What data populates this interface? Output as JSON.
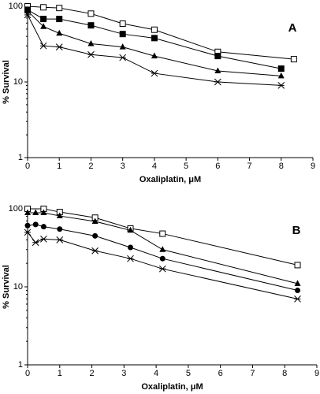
{
  "chart_data": [
    {
      "type": "line",
      "panel_label": "A",
      "x_label": "Oxaliplatin, μM",
      "y_label": "% Survival",
      "log_y": true,
      "xlim": [
        0,
        9
      ],
      "xticks": [
        0,
        1,
        2,
        3,
        4,
        5,
        6,
        7,
        8,
        9
      ],
      "ylim": [
        1,
        100
      ],
      "yticks": [
        1,
        10,
        100
      ],
      "series": [
        {
          "marker": "open-square",
          "color": "#000000",
          "x": [
            0,
            0.5,
            1,
            2,
            3,
            4,
            6,
            8.4
          ],
          "values": [
            100,
            97,
            95,
            80,
            59,
            49,
            25,
            20
          ]
        },
        {
          "marker": "filled-square",
          "color": "#000000",
          "x": [
            0,
            0.5,
            1,
            2,
            3,
            4,
            6,
            8
          ],
          "values": [
            90,
            68,
            68,
            56,
            43,
            38,
            22,
            15
          ]
        },
        {
          "marker": "filled-triangle",
          "color": "#000000",
          "x": [
            0,
            0.5,
            1,
            2,
            3,
            4,
            6,
            8
          ],
          "values": [
            87,
            54,
            44,
            32,
            29,
            22,
            14,
            12
          ]
        },
        {
          "marker": "star",
          "color": "#000000",
          "x": [
            0,
            0.5,
            1,
            2,
            3,
            4,
            6,
            8
          ],
          "values": [
            77,
            30,
            29,
            23,
            21,
            13,
            10,
            9
          ]
        }
      ]
    },
    {
      "type": "line",
      "panel_label": "B",
      "x_label": "Oxaliplatin, μM",
      "y_label": "% Survival",
      "log_y": true,
      "xlim": [
        0,
        9
      ],
      "xticks": [
        0,
        1,
        2,
        3,
        4,
        5,
        6,
        7,
        8,
        9
      ],
      "ylim": [
        1,
        100
      ],
      "yticks": [
        1,
        10,
        100
      ],
      "series": [
        {
          "marker": "open-square",
          "color": "#000000",
          "x": [
            0,
            0.5,
            1,
            2.1,
            3.2,
            4.2,
            8.4
          ],
          "values": [
            100,
            100,
            91,
            77,
            56,
            48,
            19
          ]
        },
        {
          "marker": "filled-triangle",
          "color": "#000000",
          "x": [
            0,
            0.25,
            0.5,
            1,
            2.1,
            3.2,
            4.2,
            8.4
          ],
          "values": [
            89,
            89,
            89,
            81,
            69,
            53,
            30,
            11
          ]
        },
        {
          "marker": "filled-circle",
          "color": "#000000",
          "x": [
            0,
            0.25,
            0.5,
            1,
            2.1,
            3.2,
            4.2,
            8.4
          ],
          "values": [
            61,
            63,
            59,
            55,
            45,
            32,
            23,
            9
          ]
        },
        {
          "marker": "star",
          "color": "#000000",
          "x": [
            0,
            0.25,
            0.5,
            1,
            2.1,
            3.2,
            4.2,
            8.4
          ],
          "values": [
            50,
            37,
            41,
            40,
            29,
            23,
            17,
            7
          ]
        }
      ]
    }
  ]
}
